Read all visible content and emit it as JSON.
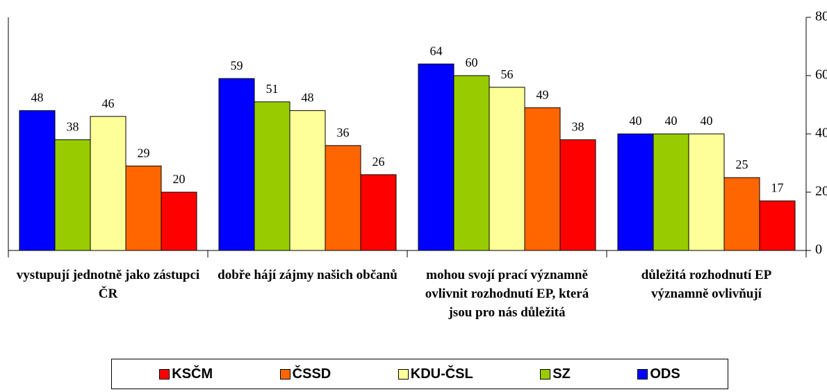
{
  "chart_data": {
    "type": "bar",
    "categories": [
      "vystupují jednotně jako zástupci ČR",
      "dobře hájí zájmy našich občanů",
      "mohou svojí prací významně ovlivnit rozhodnutí EP, která jsou pro nás důležitá",
      "důležitá rozhodnutí EP významně ovlivňují"
    ],
    "series": [
      {
        "name": "KSČM",
        "color": "#ff0000",
        "values": [
          20,
          26,
          38,
          17
        ]
      },
      {
        "name": "ČSSD",
        "color": "#ff6600",
        "values": [
          29,
          36,
          49,
          25
        ]
      },
      {
        "name": "KDU-ČSL",
        "color": "#ffff99",
        "values": [
          46,
          48,
          56,
          40
        ]
      },
      {
        "name": "SZ",
        "color": "#99cc00",
        "values": [
          38,
          51,
          60,
          40
        ]
      },
      {
        "name": "ODS",
        "color": "#0000ff",
        "values": [
          48,
          59,
          64,
          40
        ]
      }
    ],
    "ylim": [
      0,
      80
    ],
    "yticks": [
      0,
      20,
      40,
      60,
      80
    ],
    "legend": "bottom"
  }
}
